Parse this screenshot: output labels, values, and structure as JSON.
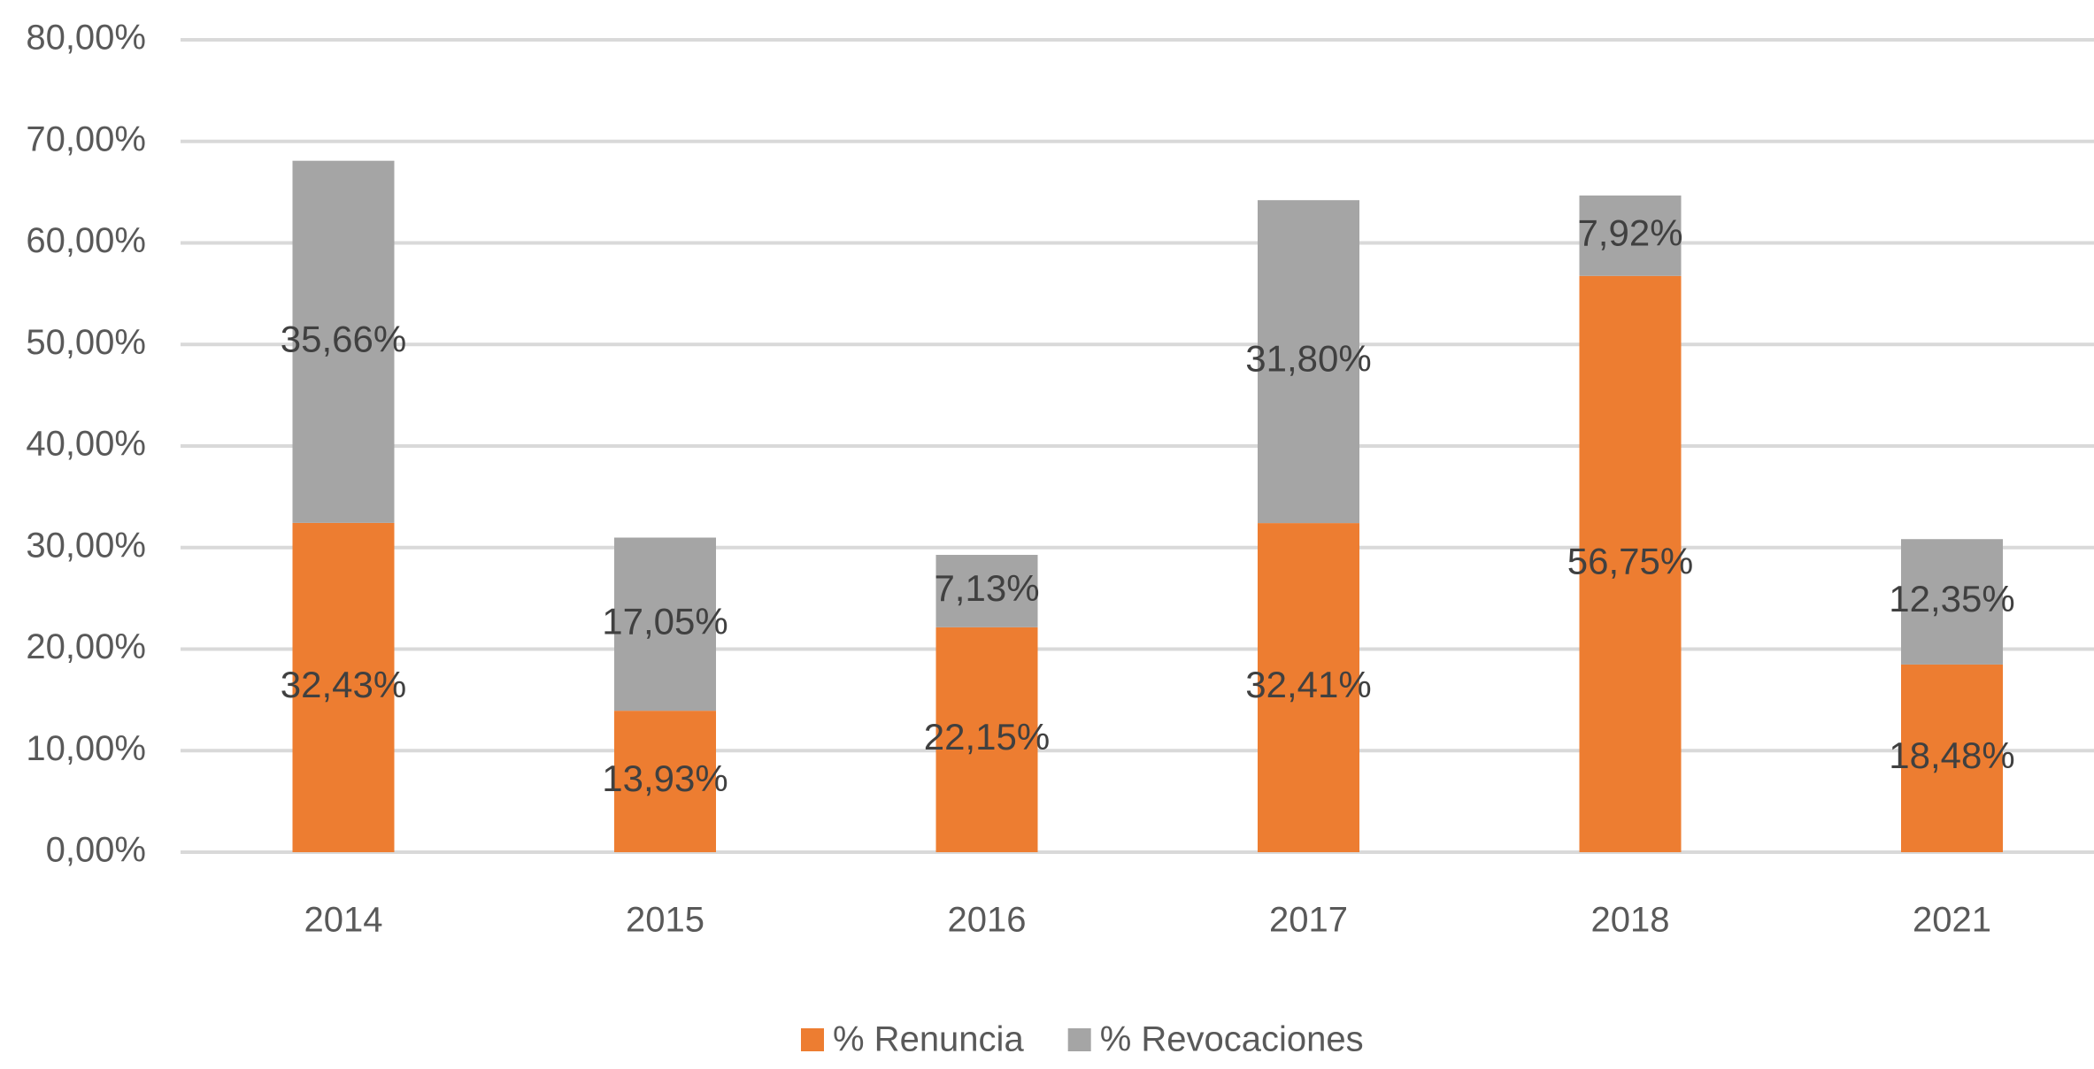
{
  "chart_data": {
    "type": "stacked_bar",
    "categories": [
      "2014",
      "2015",
      "2016",
      "2017",
      "2018",
      "2021"
    ],
    "series": [
      {
        "name": "% Renuncia",
        "color": "#ed7d31",
        "values": [
          32.43,
          13.93,
          22.15,
          32.41,
          56.75,
          18.48
        ],
        "value_labels": [
          "32,43%",
          "13,93%",
          "22,15%",
          "32,41%",
          "56,75%",
          "18,48%"
        ]
      },
      {
        "name": "% Revocaciones",
        "color": "#a5a5a5",
        "values": [
          35.66,
          17.05,
          7.13,
          31.8,
          7.92,
          12.35
        ],
        "value_labels": [
          "35,66%",
          "17,05%",
          "7,13%",
          "31,80%",
          "7,92%",
          "12,35%"
        ]
      }
    ],
    "ylim": [
      0,
      80
    ],
    "yticks": [
      {
        "value": 0,
        "label": "0,00%"
      },
      {
        "value": 10,
        "label": "10,00%"
      },
      {
        "value": 20,
        "label": "20,00%"
      },
      {
        "value": 30,
        "label": "30,00%"
      },
      {
        "value": 40,
        "label": "40,00%"
      },
      {
        "value": 50,
        "label": "50,00%"
      },
      {
        "value": 60,
        "label": "60,00%"
      },
      {
        "value": 70,
        "label": "70,00%"
      },
      {
        "value": 80,
        "label": "80,00%"
      }
    ],
    "grid": true,
    "legend": "bottom"
  }
}
